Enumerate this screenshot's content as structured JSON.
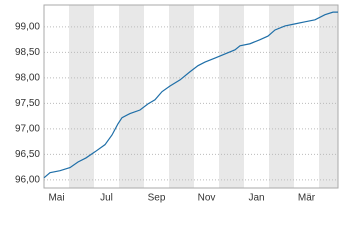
{
  "chart_data": {
    "type": "line",
    "color": "#1f6fa8",
    "grid": true,
    "x": [
      0,
      0.24,
      0.64,
      1.04,
      1.36,
      1.68,
      2.04,
      2.44,
      2.72,
      2.96,
      3.12,
      3.44,
      3.84,
      4.16,
      4.44,
      4.72,
      5.04,
      5.44,
      5.84,
      6.16,
      6.44,
      6.84,
      7.24,
      7.64,
      7.84,
      8.24,
      8.64,
      8.96,
      9.24,
      9.64,
      10.04,
      10.44,
      10.84,
      11.24,
      11.56,
      11.76
    ],
    "values": [
      96.04,
      96.14,
      96.18,
      96.24,
      96.35,
      96.43,
      96.55,
      96.69,
      96.88,
      97.1,
      97.22,
      97.3,
      97.37,
      97.49,
      97.57,
      97.73,
      97.84,
      97.96,
      98.12,
      98.24,
      98.31,
      98.39,
      98.47,
      98.55,
      98.63,
      98.67,
      98.75,
      98.82,
      98.94,
      99.02,
      99.06,
      99.1,
      99.14,
      99.24,
      99.29,
      99.29
    ],
    "xlim": [
      0,
      11.76
    ],
    "ylim": [
      95.84,
      99.43
    ],
    "xticks": [
      {
        "value": 0.5,
        "label": "Mai"
      },
      {
        "value": 2.5,
        "label": "Jul"
      },
      {
        "value": 4.5,
        "label": "Sep"
      },
      {
        "value": 6.5,
        "label": "Nov"
      },
      {
        "value": 8.5,
        "label": "Jan"
      },
      {
        "value": 10.5,
        "label": "Mär"
      }
    ],
    "yticks": [
      {
        "value": 96,
        "label": "96,00"
      },
      {
        "value": 96.5,
        "label": "96,50"
      },
      {
        "value": 97,
        "label": "97,00"
      },
      {
        "value": 97.5,
        "label": "97,50"
      },
      {
        "value": 98,
        "label": "98,00"
      },
      {
        "value": 98.5,
        "label": "98,50"
      },
      {
        "value": 99,
        "label": "99,00"
      }
    ]
  }
}
